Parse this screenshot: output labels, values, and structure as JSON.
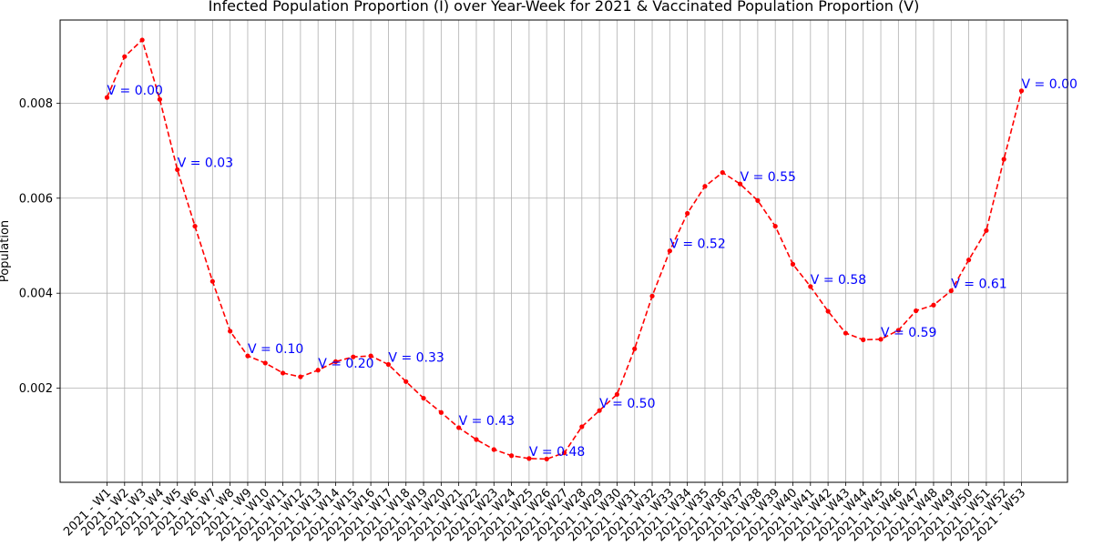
{
  "chart_data": {
    "type": "line",
    "title": "Infected Population Proportion (I) over Year-Week for 2021 & Vaccinated Population Proportion (V)",
    "xlabel": "",
    "ylabel": "Population",
    "ylim": [
      2e-05,
      0.00975
    ],
    "grid": true,
    "colors": {
      "line": "#ff0000",
      "annotation": "#0000ff",
      "grid": "#b0b0b0",
      "axes": "#000000"
    },
    "y_ticks": [
      {
        "value": 0.002,
        "label": "0.002"
      },
      {
        "value": 0.004,
        "label": "0.004"
      },
      {
        "value": 0.006,
        "label": "0.006"
      },
      {
        "value": 0.008,
        "label": "0.008"
      }
    ],
    "categories": [
      "2021 - W1",
      "2021 - W2",
      "2021 - W3",
      "2021 - W4",
      "2021 - W5",
      "2021 - W6",
      "2021 - W7",
      "2021 - W8",
      "2021 - W9",
      "2021 - W10",
      "2021 - W11",
      "2021 - W12",
      "2021 - W13",
      "2021 - W14",
      "2021 - W15",
      "2021 - W16",
      "2021 - W17",
      "2021 - W18",
      "2021 - W19",
      "2021 - W20",
      "2021 - W21",
      "2021 - W22",
      "2021 - W23",
      "2021 - W24",
      "2021 - W25",
      "2021 - W26",
      "2021 - W27",
      "2021 - W28",
      "2021 - W29",
      "2021 - W30",
      "2021 - W31",
      "2021 - W32",
      "2021 - W33",
      "2021 - W34",
      "2021 - W35",
      "2021 - W36",
      "2021 - W37",
      "2021 - W38",
      "2021 - W39",
      "2021 - W40",
      "2021 - W41",
      "2021 - W42",
      "2021 - W43",
      "2021 - W44",
      "2021 - W45",
      "2021 - W46",
      "2021 - W47",
      "2021 - W48",
      "2021 - W49",
      "2021 - W50",
      "2021 - W51",
      "2021 - W52",
      "2021 - W53"
    ],
    "series": [
      {
        "values": [
          0.00812,
          0.00898,
          0.00933,
          0.00808,
          0.0066,
          0.00541,
          0.00425,
          0.0032,
          0.00268,
          0.00253,
          0.00232,
          0.00224,
          0.00238,
          0.00256,
          0.00266,
          0.00268,
          0.0025,
          0.00214,
          0.00179,
          0.00149,
          0.00117,
          0.00092,
          0.00071,
          0.00058,
          0.00052,
          0.00051,
          0.00064,
          0.00119,
          0.00153,
          0.00187,
          0.00283,
          0.00394,
          0.00489,
          0.00568,
          0.00625,
          0.00654,
          0.0063,
          0.00595,
          0.00541,
          0.00461,
          0.00414,
          0.00362,
          0.00316,
          0.00302,
          0.00303,
          0.00322,
          0.00363,
          0.00375,
          0.00405,
          0.0047,
          0.00532,
          0.00682,
          0.00826
        ]
      }
    ],
    "annotations": [
      {
        "index": 0,
        "text": "V = 0.00"
      },
      {
        "index": 4,
        "text": "V = 0.03"
      },
      {
        "index": 8,
        "text": "V = 0.10"
      },
      {
        "index": 12,
        "text": "V = 0.20"
      },
      {
        "index": 16,
        "text": "V = 0.33"
      },
      {
        "index": 20,
        "text": "V = 0.43"
      },
      {
        "index": 24,
        "text": "V = 0.48"
      },
      {
        "index": 28,
        "text": "V = 0.50"
      },
      {
        "index": 32,
        "text": "V = 0.52"
      },
      {
        "index": 36,
        "text": "V = 0.55"
      },
      {
        "index": 40,
        "text": "V = 0.58"
      },
      {
        "index": 44,
        "text": "V = 0.59"
      },
      {
        "index": 48,
        "text": "V = 0.61"
      },
      {
        "index": 52,
        "text": "V = 0.00"
      }
    ]
  }
}
